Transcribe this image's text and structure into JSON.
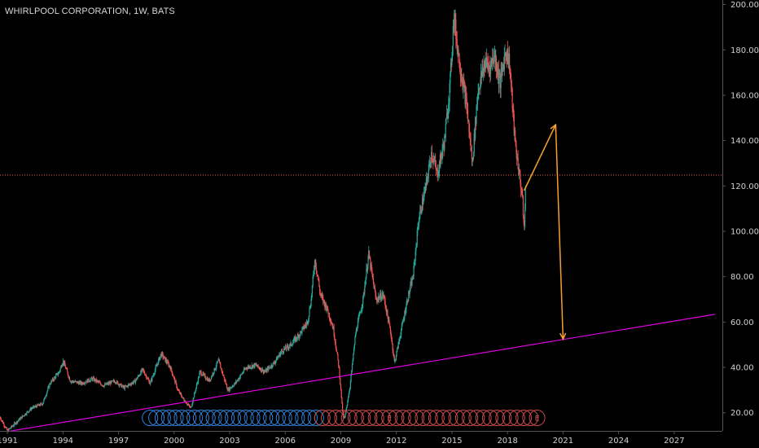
{
  "header": {
    "title": "WHIRLPOOL CORPORATION, 1W, BATS"
  },
  "colors": {
    "background": "#000000",
    "axis": "#555555",
    "candle_up": "#26a69a",
    "candle_down": "#ef5350",
    "trendline": "#e000e0",
    "arrows": "#f5a030",
    "hline": "#ff6040",
    "div_events": "#2f7fd8",
    "earn_events": "#c84a4a"
  },
  "chart_data": {
    "type": "candlestick",
    "interval": "1W",
    "x_axis": {
      "type": "year",
      "range": [
        1990.6,
        2029.6
      ],
      "tick_labels": [
        "1991",
        "1994",
        "1997",
        "2000",
        "2003",
        "2006",
        "2009",
        "2012",
        "2015",
        "2018",
        "2021",
        "2024",
        "2027"
      ]
    },
    "y_axis": {
      "position": "right",
      "range": [
        12,
        202
      ],
      "tick_labels": [
        "20.00",
        "40.00",
        "60.00",
        "80.00",
        "100.00",
        "120.00",
        "140.00",
        "160.00",
        "180.00",
        "200.00"
      ]
    },
    "price_path": [
      [
        1990.6,
        18
      ],
      [
        1991.0,
        12
      ],
      [
        1991.5,
        16
      ],
      [
        1992.3,
        22
      ],
      [
        1992.9,
        24
      ],
      [
        1993.3,
        33
      ],
      [
        1993.8,
        38
      ],
      [
        1994.0,
        43
      ],
      [
        1994.4,
        34
      ],
      [
        1995.0,
        33
      ],
      [
        1995.6,
        35
      ],
      [
        1996.2,
        32
      ],
      [
        1996.8,
        34
      ],
      [
        1997.3,
        31
      ],
      [
        1997.9,
        34
      ],
      [
        1998.3,
        39
      ],
      [
        1998.7,
        33
      ],
      [
        1999.3,
        46
      ],
      [
        1999.8,
        40
      ],
      [
        2000.2,
        30
      ],
      [
        2000.5,
        26
      ],
      [
        2000.9,
        22
      ],
      [
        2001.4,
        38
      ],
      [
        2001.9,
        34
      ],
      [
        2002.4,
        43
      ],
      [
        2002.9,
        30
      ],
      [
        2003.3,
        33
      ],
      [
        2003.9,
        40
      ],
      [
        2004.4,
        41
      ],
      [
        2004.9,
        38
      ],
      [
        2005.4,
        42
      ],
      [
        2005.8,
        47
      ],
      [
        2006.3,
        50
      ],
      [
        2006.8,
        55
      ],
      [
        2007.2,
        60
      ],
      [
        2007.4,
        70
      ],
      [
        2007.6,
        88
      ],
      [
        2007.9,
        72
      ],
      [
        2008.3,
        65
      ],
      [
        2008.6,
        57
      ],
      [
        2008.9,
        40
      ],
      [
        2009.1,
        20
      ],
      [
        2009.2,
        17
      ],
      [
        2009.5,
        32
      ],
      [
        2009.8,
        55
      ],
      [
        2010.2,
        70
      ],
      [
        2010.5,
        90
      ],
      [
        2010.9,
        70
      ],
      [
        2011.3,
        72
      ],
      [
        2011.7,
        55
      ],
      [
        2011.9,
        42
      ],
      [
        2012.3,
        58
      ],
      [
        2012.6,
        70
      ],
      [
        2012.9,
        80
      ],
      [
        2013.2,
        105
      ],
      [
        2013.6,
        120
      ],
      [
        2013.9,
        135
      ],
      [
        2014.2,
        125
      ],
      [
        2014.6,
        140
      ],
      [
        2014.9,
        165
      ],
      [
        2015.1,
        195
      ],
      [
        2015.4,
        175
      ],
      [
        2015.8,
        155
      ],
      [
        2016.1,
        130
      ],
      [
        2016.4,
        162
      ],
      [
        2016.8,
        175
      ],
      [
        2017.0,
        172
      ],
      [
        2017.3,
        178
      ],
      [
        2017.6,
        165
      ],
      [
        2017.9,
        180
      ],
      [
        2018.1,
        175
      ],
      [
        2018.4,
        140
      ],
      [
        2018.8,
        115
      ],
      [
        2018.9,
        100
      ],
      [
        2019.0,
        125
      ]
    ],
    "annotations": {
      "horizontal_line": {
        "value": 124.8,
        "style": "dotted"
      },
      "trendline": {
        "points": [
          [
            1991.0,
            11.7
          ],
          [
            2029.2,
            63.4
          ]
        ]
      },
      "arrow_up": {
        "from": [
          2018.9,
          118
        ],
        "to": [
          2020.6,
          147
        ]
      },
      "arrow_down": {
        "from": [
          2020.6,
          147
        ],
        "to": [
          2021.0,
          52.5
        ]
      }
    },
    "events": {
      "dividends": {
        "start": 1998.7,
        "end": 2008.0,
        "count": 28
      },
      "earnings": {
        "start": 2008.0,
        "end": 2019.6,
        "count": 33,
        "flags": [
          {
            "index": 10,
            "label": "E"
          },
          {
            "index": 32,
            "label": "E"
          }
        ]
      }
    }
  }
}
